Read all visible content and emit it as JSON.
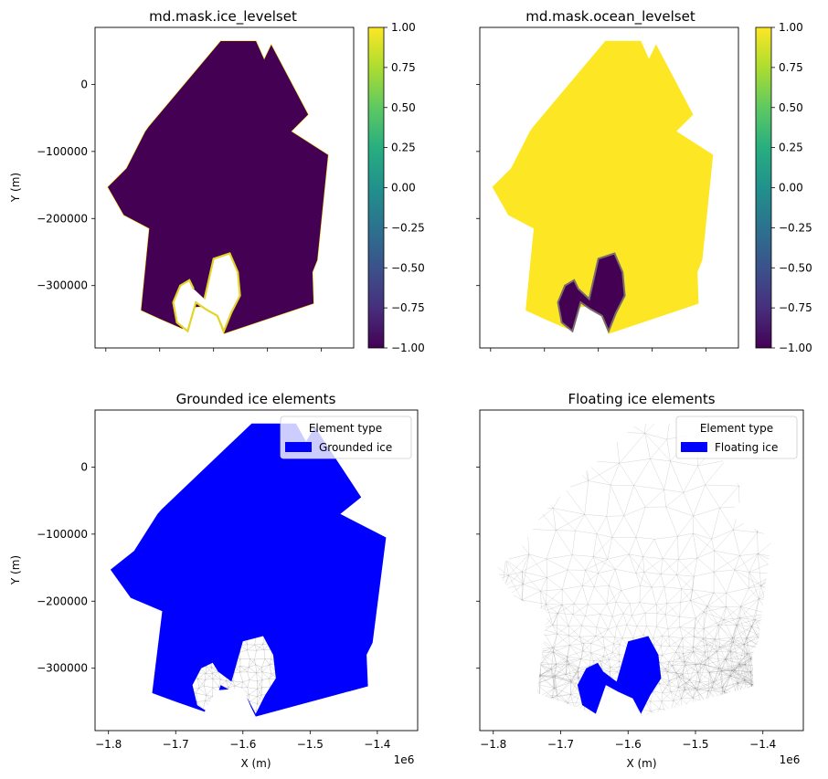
{
  "chart_data": [
    {
      "type": "heatmap",
      "title": "md.mask.ice_levelset",
      "xlabel": "",
      "ylabel": "Y (m)",
      "xlim": [
        -1820000.0,
        -1340000.0
      ],
      "ylim": [
        -393000,
        85000
      ],
      "ytick_labels": [
        "0",
        "−100000",
        "−200000",
        "−300000"
      ],
      "colorbar": {
        "min": -1.0,
        "max": 1.0,
        "colormap": "viridis",
        "tick_labels": [
          "1.00",
          "0.75",
          "0.50",
          "0.25",
          "0.00",
          "−0.25",
          "−0.50",
          "−0.75",
          "−1.00"
        ]
      },
      "fill_value": -1.0,
      "fill_color": "#440154",
      "edge_value": 1.0
    },
    {
      "type": "heatmap",
      "title": "md.mask.ocean_levelset",
      "xlabel": "",
      "ylabel": "",
      "xlim": [
        -1820000.0,
        -1340000.0
      ],
      "ylim": [
        -393000,
        85000
      ],
      "colorbar": {
        "min": -1.0,
        "max": 1.0,
        "colormap": "viridis",
        "tick_labels": [
          "1.00",
          "0.75",
          "0.50",
          "0.25",
          "0.00",
          "−0.25",
          "−0.50",
          "−0.75",
          "−1.00"
        ]
      },
      "fill_value": 1.0,
      "fill_color": "#fde725",
      "shelf_value": -1.0,
      "shelf_color": "#440154"
    },
    {
      "type": "mesh",
      "title": "Grounded ice elements",
      "xlabel": "X (m)",
      "ylabel": "Y (m)",
      "xlim": [
        -1820000.0,
        -1340000.0
      ],
      "ylim": [
        -393000,
        85000
      ],
      "xtick_labels": [
        "−1.8",
        "−1.7",
        "−1.6",
        "−1.5",
        "−1.4"
      ],
      "ytick_labels": [
        "0",
        "−100000",
        "−200000",
        "−300000"
      ],
      "offset_text": "1e6",
      "legend": {
        "title": "Element type",
        "entries": [
          {
            "label": "Grounded ice",
            "color": "#0000ff"
          }
        ],
        "placement": "upper right"
      }
    },
    {
      "type": "mesh",
      "title": "Floating ice elements",
      "xlabel": "X (m)",
      "ylabel": "",
      "xlim": [
        -1820000.0,
        -1340000.0
      ],
      "ylim": [
        -393000,
        85000
      ],
      "xtick_labels": [
        "−1.8",
        "−1.7",
        "−1.6",
        "−1.5",
        "−1.4"
      ],
      "offset_text": "1e6",
      "legend": {
        "title": "Element type",
        "entries": [
          {
            "label": "Floating ice",
            "color": "#0000ff"
          }
        ],
        "placement": "upper right"
      }
    }
  ],
  "domain_outline": [
    [
      -1587000.0,
      65000
    ],
    [
      -1521000.0,
      65000
    ],
    [
      -1506000.0,
      38000
    ],
    [
      -1493000.0,
      60000
    ],
    [
      -1424000.0,
      -45000
    ],
    [
      -1455000.0,
      -70000
    ],
    [
      -1387000.0,
      -105000
    ],
    [
      -1407000.0,
      -262000
    ],
    [
      -1416000.0,
      -280000
    ],
    [
      -1414000.0,
      -327000
    ],
    [
      -1581000.0,
      -372000
    ],
    [
      -1588000.0,
      -358000
    ],
    [
      -1600000.0,
      -330000
    ],
    [
      -1640000.0,
      -333000
    ],
    [
      -1657000.0,
      -365000
    ],
    [
      -1700000.0,
      -350000
    ],
    [
      -1735000.0,
      -337000
    ],
    [
      -1720000.0,
      -215000
    ],
    [
      -1767000.0,
      -195000
    ],
    [
      -1797000.0,
      -153000
    ],
    [
      -1762000.0,
      -125000
    ],
    [
      -1727000.0,
      -70000
    ],
    [
      -1721000.0,
      -63000
    ]
  ],
  "shelf_outline": [
    [
      -1617000.0,
      -320000
    ],
    [
      -1600000.0,
      -260000
    ],
    [
      -1570000.0,
      -252000
    ],
    [
      -1555000.0,
      -280000
    ],
    [
      -1551000.0,
      -315000
    ],
    [
      -1567000.0,
      -340000
    ],
    [
      -1581000.0,
      -368000
    ],
    [
      -1593000.0,
      -345000
    ],
    [
      -1615000.0,
      -335000
    ],
    [
      -1633000.0,
      -325000
    ],
    [
      -1648000.0,
      -368000
    ],
    [
      -1668000.0,
      -355000
    ],
    [
      -1675000.0,
      -325000
    ],
    [
      -1662000.0,
      -300000
    ],
    [
      -1645000.0,
      -292000
    ],
    [
      -1637000.0,
      -305000
    ]
  ]
}
